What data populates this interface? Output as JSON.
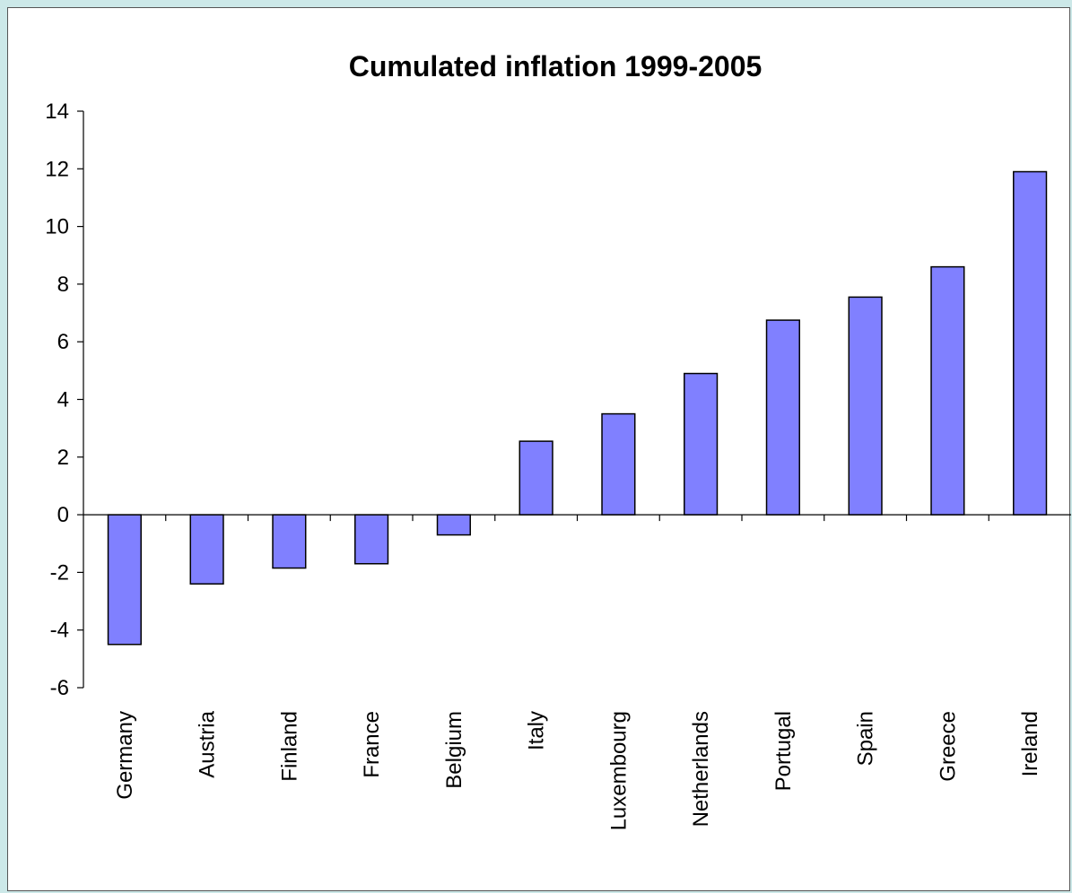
{
  "chart_data": {
    "type": "bar",
    "title": "Cumulated inflation 1999-2005",
    "xlabel": "",
    "ylabel": "",
    "categories": [
      "Germany",
      "Austria",
      "Finland",
      "France",
      "Belgium",
      "Italy",
      "Luxembourg",
      "Netherlands",
      "Portugal",
      "Spain",
      "Greece",
      "Ireland"
    ],
    "values": [
      -4.5,
      -2.4,
      -1.85,
      -1.7,
      -0.7,
      2.55,
      3.5,
      4.9,
      6.75,
      7.55,
      8.6,
      11.9
    ],
    "ylim": [
      -6,
      14
    ],
    "yticks": [
      "14",
      "12",
      "10",
      "8",
      "6",
      "4",
      "2",
      "0",
      "-2",
      "-4",
      "-6"
    ],
    "bar_color": "#8080ff",
    "bar_stroke": "#000000",
    "background": "#cce8e8",
    "grid": false,
    "legend": "none"
  }
}
